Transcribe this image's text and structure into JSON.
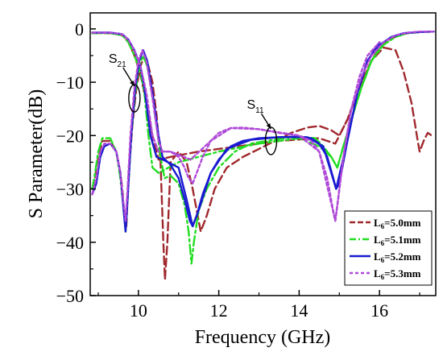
{
  "chart_data": {
    "type": "line",
    "title": "",
    "xlabel": "Frequency (GHz)",
    "ylabel": "S Parameter(dB)",
    "xlim": [
      8.8,
      17.4
    ],
    "ylim": [
      -50,
      3
    ],
    "xticks": [
      "10",
      "12",
      "14",
      "16"
    ],
    "xtick_values": [
      10,
      12,
      14,
      16
    ],
    "yticks": [
      "0",
      "−10",
      "−20",
      "−30",
      "−40",
      "−50"
    ],
    "ytick_values": [
      0,
      -10,
      -20,
      -30,
      -40,
      -50
    ],
    "grid": false,
    "legend_position": "lower-right",
    "annotations": [
      {
        "label": "S",
        "sub": "21",
        "target_x": 9.9,
        "target_y": -13
      },
      {
        "label": "S",
        "sub": "11",
        "target_x": 13.3,
        "target_y": -21
      }
    ],
    "series": [
      {
        "name": "L",
        "name_sub": "6",
        "name_suffix": "=5.0mm",
        "color": "#a0282d",
        "dash": "10,5",
        "s11": [
          [
            8.85,
            -30
          ],
          [
            8.9,
            -29
          ],
          [
            9.0,
            -24
          ],
          [
            9.1,
            -21
          ],
          [
            9.3,
            -21
          ],
          [
            9.45,
            -23
          ],
          [
            9.55,
            -27
          ],
          [
            9.6,
            -30
          ],
          [
            9.65,
            -35
          ],
          [
            9.7,
            -37
          ],
          [
            9.75,
            -28
          ],
          [
            9.85,
            -18
          ],
          [
            9.95,
            -11
          ],
          [
            10.05,
            -7
          ],
          [
            10.15,
            -5
          ],
          [
            10.25,
            -7
          ],
          [
            10.35,
            -10
          ],
          [
            10.45,
            -16
          ],
          [
            10.55,
            -25
          ],
          [
            10.62,
            -40
          ],
          [
            10.66,
            -47
          ],
          [
            10.72,
            -40
          ],
          [
            10.8,
            -25
          ],
          [
            11.0,
            -23
          ],
          [
            11.2,
            -25
          ],
          [
            11.35,
            -30
          ],
          [
            11.45,
            -34
          ],
          [
            11.55,
            -38
          ],
          [
            11.7,
            -35
          ],
          [
            11.9,
            -30
          ],
          [
            12.2,
            -26
          ],
          [
            12.6,
            -24
          ],
          [
            13.0,
            -22.5
          ],
          [
            13.4,
            -21
          ],
          [
            13.8,
            -19.5
          ],
          [
            14.2,
            -18.5
          ],
          [
            14.5,
            -18.2
          ],
          [
            14.8,
            -19
          ],
          [
            15.0,
            -20
          ],
          [
            15.2,
            -17
          ],
          [
            15.5,
            -11
          ],
          [
            15.8,
            -6
          ],
          [
            16.1,
            -3.5
          ],
          [
            16.4,
            -4
          ],
          [
            16.6,
            -8
          ],
          [
            16.8,
            -14
          ],
          [
            16.95,
            -21
          ],
          [
            17.0,
            -23
          ],
          [
            17.1,
            -21
          ],
          [
            17.2,
            -19.5
          ],
          [
            17.3,
            -20
          ]
        ],
        "s21": [
          [
            8.85,
            -0.8
          ],
          [
            9.3,
            -0.8
          ],
          [
            9.6,
            -1.2
          ],
          [
            9.75,
            -2.5
          ],
          [
            9.9,
            -5
          ],
          [
            10.05,
            -8.5
          ],
          [
            10.2,
            -14
          ],
          [
            10.35,
            -20
          ],
          [
            10.5,
            -24.5
          ],
          [
            10.8,
            -24
          ],
          [
            11.5,
            -23
          ],
          [
            12.5,
            -22
          ],
          [
            13.5,
            -21
          ],
          [
            14.5,
            -20.5
          ],
          [
            14.9,
            -21.5
          ],
          [
            15.2,
            -17
          ],
          [
            15.5,
            -11
          ],
          [
            15.8,
            -6
          ],
          [
            16.0,
            -3.5
          ],
          [
            16.3,
            -1.8
          ],
          [
            16.6,
            -0.9
          ],
          [
            17.0,
            -0.6
          ],
          [
            17.35,
            -0.5
          ]
        ]
      },
      {
        "name": "L",
        "name_sub": "6",
        "name_suffix": "=5.1mm",
        "color": "#22dd22",
        "dash": "12,4,3,4",
        "s11": [
          [
            8.85,
            -30
          ],
          [
            8.9,
            -28
          ],
          [
            9.0,
            -23
          ],
          [
            9.1,
            -20.5
          ],
          [
            9.3,
            -20.5
          ],
          [
            9.45,
            -23
          ],
          [
            9.55,
            -28
          ],
          [
            9.62,
            -33
          ],
          [
            9.68,
            -38
          ],
          [
            9.73,
            -32
          ],
          [
            9.82,
            -20
          ],
          [
            9.92,
            -12
          ],
          [
            10.02,
            -7
          ],
          [
            10.12,
            -5
          ],
          [
            10.22,
            -7
          ],
          [
            10.32,
            -11
          ],
          [
            10.45,
            -18
          ],
          [
            10.55,
            -24
          ],
          [
            10.65,
            -28
          ],
          [
            10.8,
            -27.5
          ],
          [
            11.0,
            -29
          ],
          [
            11.15,
            -33
          ],
          [
            11.25,
            -38
          ],
          [
            11.32,
            -44
          ],
          [
            11.38,
            -40
          ],
          [
            11.5,
            -34
          ],
          [
            11.7,
            -30
          ],
          [
            12.0,
            -26
          ],
          [
            12.4,
            -23
          ],
          [
            12.8,
            -21.5
          ],
          [
            13.2,
            -21
          ],
          [
            13.6,
            -20.5
          ],
          [
            14.0,
            -20.2
          ],
          [
            14.4,
            -20.5
          ],
          [
            14.6,
            -22
          ],
          [
            14.8,
            -24
          ],
          [
            14.95,
            -26
          ],
          [
            15.1,
            -22
          ],
          [
            15.3,
            -17
          ],
          [
            15.55,
            -11
          ],
          [
            15.8,
            -6
          ],
          [
            16.1,
            -2.5
          ]
        ],
        "s21": [
          [
            8.85,
            -0.8
          ],
          [
            9.3,
            -0.8
          ],
          [
            9.6,
            -1.2
          ],
          [
            9.75,
            -2.5
          ],
          [
            9.9,
            -5
          ],
          [
            10.05,
            -8
          ],
          [
            10.15,
            -12
          ],
          [
            10.25,
            -20
          ],
          [
            10.35,
            -26
          ],
          [
            10.5,
            -27
          ],
          [
            11.0,
            -25
          ],
          [
            12.0,
            -23
          ],
          [
            13.0,
            -21.5
          ],
          [
            14.0,
            -20.5
          ],
          [
            14.5,
            -22
          ],
          [
            14.8,
            -24
          ],
          [
            14.95,
            -26
          ],
          [
            15.1,
            -22
          ],
          [
            15.3,
            -17
          ],
          [
            15.55,
            -11
          ],
          [
            15.8,
            -6
          ],
          [
            16.1,
            -3
          ],
          [
            16.4,
            -1.5
          ],
          [
            16.7,
            -0.8
          ],
          [
            17.0,
            -0.6
          ],
          [
            17.35,
            -0.5
          ]
        ]
      },
      {
        "name": "L",
        "name_sub": "6",
        "name_suffix": "=5.2mm",
        "color": "#1a1ad0",
        "dash": "",
        "s11": [
          [
            8.85,
            -31
          ],
          [
            8.95,
            -29
          ],
          [
            9.05,
            -24
          ],
          [
            9.15,
            -22
          ],
          [
            9.3,
            -21.5
          ],
          [
            9.45,
            -23
          ],
          [
            9.55,
            -27
          ],
          [
            9.62,
            -33
          ],
          [
            9.68,
            -38
          ],
          [
            9.73,
            -32
          ],
          [
            9.82,
            -20
          ],
          [
            9.92,
            -11
          ],
          [
            10.02,
            -6
          ],
          [
            10.12,
            -4
          ],
          [
            10.22,
            -6
          ],
          [
            10.35,
            -12
          ],
          [
            10.5,
            -20
          ],
          [
            10.6,
            -24
          ],
          [
            10.8,
            -25.5
          ],
          [
            11.0,
            -28
          ],
          [
            11.15,
            -32
          ],
          [
            11.28,
            -36
          ],
          [
            11.35,
            -37
          ],
          [
            11.45,
            -35
          ],
          [
            11.6,
            -31
          ],
          [
            11.8,
            -27
          ],
          [
            12.0,
            -24.5
          ],
          [
            12.3,
            -22
          ],
          [
            12.6,
            -21
          ],
          [
            13.0,
            -20.5
          ],
          [
            13.5,
            -20.3
          ],
          [
            14.0,
            -20.2
          ],
          [
            14.3,
            -20.5
          ],
          [
            14.5,
            -21.5
          ],
          [
            14.7,
            -24
          ],
          [
            14.85,
            -28
          ],
          [
            14.92,
            -30
          ],
          [
            15.0,
            -29
          ],
          [
            15.2,
            -21
          ],
          [
            15.45,
            -12
          ],
          [
            15.7,
            -6
          ],
          [
            16.0,
            -2.5
          ]
        ],
        "s21": [
          [
            8.85,
            -0.7
          ],
          [
            9.3,
            -0.7
          ],
          [
            9.6,
            -1.0
          ],
          [
            9.75,
            -2
          ],
          [
            9.9,
            -4
          ],
          [
            10.05,
            -7
          ],
          [
            10.15,
            -11
          ],
          [
            10.3,
            -20
          ],
          [
            10.45,
            -24
          ],
          [
            10.6,
            -24.5
          ],
          [
            11.0,
            -26
          ],
          [
            11.2,
            -32
          ],
          [
            11.35,
            -37
          ],
          [
            11.5,
            -34
          ],
          [
            11.8,
            -27
          ],
          [
            12.2,
            -22.5
          ],
          [
            12.8,
            -20.8
          ],
          [
            13.5,
            -20.3
          ],
          [
            14.2,
            -20.3
          ],
          [
            14.6,
            -22
          ],
          [
            14.92,
            -30
          ],
          [
            15.2,
            -21
          ],
          [
            15.45,
            -12
          ],
          [
            15.7,
            -6
          ],
          [
            16.0,
            -3
          ],
          [
            16.3,
            -1.5
          ],
          [
            16.6,
            -0.8
          ],
          [
            17.0,
            -0.6
          ],
          [
            17.35,
            -0.5
          ]
        ]
      },
      {
        "name": "L",
        "name_sub": "6",
        "name_suffix": "=5.3mm",
        "color": "#b04ad8",
        "dash": "4,3",
        "s11": [
          [
            8.85,
            -31
          ],
          [
            8.95,
            -28
          ],
          [
            9.05,
            -23
          ],
          [
            9.15,
            -21.5
          ],
          [
            9.3,
            -21.5
          ],
          [
            9.45,
            -23
          ],
          [
            9.55,
            -27
          ],
          [
            9.62,
            -32
          ],
          [
            9.68,
            -36
          ],
          [
            9.73,
            -30
          ],
          [
            9.8,
            -20
          ],
          [
            9.9,
            -11
          ],
          [
            10.0,
            -6
          ],
          [
            10.1,
            -4
          ],
          [
            10.2,
            -6
          ],
          [
            10.35,
            -13
          ],
          [
            10.5,
            -21
          ],
          [
            10.6,
            -23
          ],
          [
            10.8,
            -23
          ],
          [
            11.0,
            -24
          ],
          [
            11.15,
            -26
          ],
          [
            11.25,
            -28
          ],
          [
            11.35,
            -29
          ],
          [
            11.45,
            -27
          ],
          [
            11.6,
            -24
          ],
          [
            11.8,
            -21
          ],
          [
            12.0,
            -19.5
          ],
          [
            12.3,
            -18.6
          ],
          [
            12.6,
            -18.5
          ],
          [
            13.0,
            -18.8
          ],
          [
            13.5,
            -19.5
          ],
          [
            14.0,
            -20
          ],
          [
            14.3,
            -21
          ],
          [
            14.5,
            -23
          ],
          [
            14.7,
            -28
          ],
          [
            14.82,
            -33
          ],
          [
            14.9,
            -36
          ],
          [
            14.97,
            -32
          ],
          [
            15.1,
            -24
          ],
          [
            15.3,
            -15
          ],
          [
            15.5,
            -9
          ],
          [
            15.7,
            -5
          ],
          [
            16.0,
            -2.5
          ]
        ],
        "s21": [
          [
            8.85,
            -0.7
          ],
          [
            9.3,
            -0.7
          ],
          [
            9.6,
            -1.0
          ],
          [
            9.75,
            -2
          ],
          [
            9.9,
            -4
          ],
          [
            10.05,
            -7
          ],
          [
            10.2,
            -12
          ],
          [
            10.35,
            -20
          ],
          [
            10.5,
            -23
          ],
          [
            10.8,
            -23
          ],
          [
            11.3,
            -24.5
          ],
          [
            11.8,
            -21
          ],
          [
            12.3,
            -18.6
          ],
          [
            13.0,
            -18.8
          ],
          [
            14.0,
            -20
          ],
          [
            14.5,
            -23
          ],
          [
            14.9,
            -36
          ],
          [
            15.1,
            -24
          ],
          [
            15.3,
            -15
          ],
          [
            15.55,
            -9
          ],
          [
            15.8,
            -5
          ],
          [
            16.1,
            -2.5
          ],
          [
            16.4,
            -1.2
          ],
          [
            16.7,
            -0.7
          ],
          [
            17.0,
            -0.5
          ],
          [
            17.35,
            -0.5
          ]
        ]
      }
    ]
  }
}
